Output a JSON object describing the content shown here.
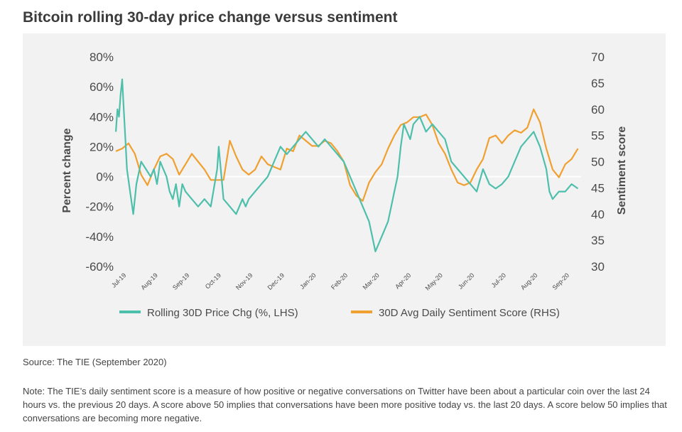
{
  "page": {
    "title": "Bitcoin rolling 30-day price change versus sentiment",
    "source": "Source: The TIE (September 2020)",
    "note": "Note: The TIE’s daily sentiment score is a measure of how positive or negative conversations on Twitter have been about a particular coin over the last 24 hours vs. the previous 20 days. A score above 50 implies that conversations have been more positive today vs. the last 20 days. A score below 50 implies that conversations are becoming more negative."
  },
  "chart_data": {
    "type": "line",
    "title": "Bitcoin rolling 30-day price change versus sentiment",
    "ylabel_left": "Percent change",
    "ylabel_right": "Sentiment score",
    "ylim_left": [
      -60,
      80
    ],
    "ylim_right": [
      30,
      70
    ],
    "left_ticks": [
      "80%",
      "60%",
      "40%",
      "20%",
      "0%",
      "-20%",
      "-40%",
      "-60%"
    ],
    "right_ticks": [
      "70",
      "65",
      "60",
      "55",
      "50",
      "45",
      "40",
      "35",
      "30"
    ],
    "x_tick_labels": [
      "Jul-19",
      "Aug-19",
      "Sep-19",
      "Oct-19",
      "Nov-19",
      "Dec-19",
      "Jan-20",
      "Feb-20",
      "Mar-20",
      "Apr-20",
      "May-20",
      "Jun-20",
      "Jul-20",
      "Aug-20",
      "Sep-20"
    ],
    "x_range_months": [
      0,
      14.5
    ],
    "grid": "zero-line-only",
    "legend_position": "bottom",
    "colors": {
      "price": "#4dbfab",
      "sentiment": "#f0a030",
      "zero_line": "#ffffff"
    },
    "series": [
      {
        "name": "Rolling 30D Price Chg (%, LHS)",
        "axis": "left",
        "x": [
          -0.2,
          -0.15,
          -0.1,
          -0.05,
          0,
          0.05,
          0.1,
          0.15,
          0.25,
          0.35,
          0.45,
          0.6,
          0.75,
          0.9,
          1.0,
          1.1,
          1.2,
          1.3,
          1.4,
          1.5,
          1.6,
          1.7,
          1.8,
          1.9,
          2.0,
          2.2,
          2.4,
          2.6,
          2.8,
          3.0,
          3.05,
          3.2,
          3.4,
          3.6,
          3.8,
          3.9,
          4.0,
          4.2,
          4.4,
          4.6,
          4.8,
          5.0,
          5.2,
          5.4,
          5.6,
          5.8,
          6.0,
          6.2,
          6.4,
          6.6,
          6.8,
          7.0,
          7.2,
          7.4,
          7.6,
          7.8,
          7.9,
          8.0,
          8.1,
          8.2,
          8.3,
          8.4,
          8.5,
          8.6,
          8.7,
          8.8,
          8.9,
          9.0,
          9.1,
          9.2,
          9.4,
          9.6,
          9.8,
          10.0,
          10.2,
          10.4,
          10.6,
          10.8,
          11.0,
          11.2,
          11.4,
          11.6,
          11.8,
          12.0,
          12.2,
          12.4,
          12.6,
          12.8,
          13.0,
          13.2,
          13.4,
          13.5,
          13.6,
          13.8,
          14.0,
          14.2,
          14.4
        ],
        "values": [
          30,
          45,
          40,
          55,
          65,
          45,
          25,
          5,
          -10,
          -25,
          -5,
          10,
          5,
          0,
          5,
          -5,
          10,
          5,
          0,
          -10,
          -15,
          -5,
          -20,
          -5,
          -10,
          -15,
          -20,
          -15,
          -20,
          5,
          20,
          -15,
          -20,
          -25,
          -15,
          -20,
          -15,
          -10,
          -5,
          0,
          10,
          20,
          15,
          20,
          25,
          30,
          25,
          20,
          25,
          20,
          15,
          10,
          0,
          -10,
          -20,
          -30,
          -40,
          -50,
          -45,
          -40,
          -35,
          -30,
          -20,
          -10,
          0,
          20,
          35,
          30,
          25,
          35,
          40,
          30,
          35,
          30,
          25,
          10,
          5,
          0,
          -5,
          -10,
          5,
          -5,
          -8,
          -5,
          0,
          10,
          20,
          25,
          30,
          20,
          5,
          -10,
          -15,
          -10,
          -10,
          -5,
          -8
        ]
      },
      {
        "name": "30D Avg Daily Sentiment Score (RHS)",
        "axis": "right",
        "x": [
          -0.2,
          0,
          0.2,
          0.4,
          0.6,
          0.8,
          1.0,
          1.2,
          1.4,
          1.6,
          1.8,
          2.0,
          2.2,
          2.4,
          2.6,
          2.8,
          3.0,
          3.2,
          3.4,
          3.6,
          3.8,
          4.0,
          4.2,
          4.4,
          4.6,
          4.8,
          5.0,
          5.2,
          5.4,
          5.6,
          5.8,
          6.0,
          6.2,
          6.4,
          6.6,
          6.8,
          7.0,
          7.2,
          7.4,
          7.6,
          7.8,
          8.0,
          8.2,
          8.4,
          8.6,
          8.8,
          9.0,
          9.2,
          9.4,
          9.6,
          9.8,
          10.0,
          10.2,
          10.4,
          10.6,
          10.8,
          11.0,
          11.2,
          11.4,
          11.6,
          11.8,
          12.0,
          12.2,
          12.4,
          12.6,
          12.8,
          13.0,
          13.2,
          13.4,
          13.6,
          13.8,
          14.0,
          14.2,
          14.4
        ],
        "values": [
          52,
          52.5,
          53.5,
          51.5,
          47.5,
          45.5,
          48.5,
          51,
          51.5,
          50.5,
          47.5,
          49.5,
          51.5,
          50,
          48.5,
          46.5,
          46.5,
          46.5,
          54,
          51,
          48.5,
          47.5,
          48.5,
          51,
          49.5,
          49,
          48.5,
          52.5,
          52,
          55,
          54,
          53,
          53,
          54,
          53.5,
          52,
          50,
          45.5,
          43.5,
          42.5,
          46,
          48,
          49.5,
          52.5,
          55,
          57,
          57.5,
          58.5,
          58.5,
          59,
          57,
          53.5,
          51.5,
          48.5,
          46,
          45.5,
          46,
          48.5,
          50.5,
          54.5,
          55,
          53.5,
          55,
          56,
          55.5,
          56.5,
          60,
          57.5,
          52.5,
          48.5,
          47,
          49.5,
          50.5,
          52.5
        ]
      }
    ]
  }
}
